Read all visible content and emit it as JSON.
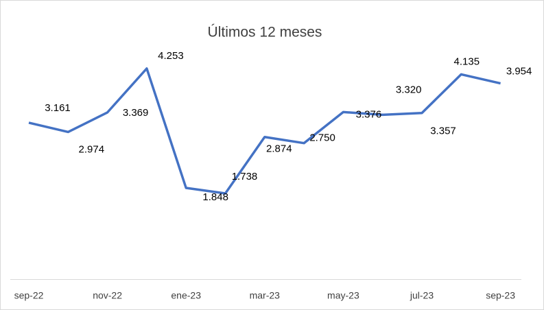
{
  "chart_data": {
    "type": "line",
    "title": "Últimos 12 meses",
    "categories": [
      "sep-22",
      null,
      "nov-22",
      null,
      "ene-23",
      null,
      "mar-23",
      null,
      "may-23",
      null,
      "jul-23",
      null,
      "sep-23"
    ],
    "series": [
      {
        "color": "#4472c4",
        "values": [
          3161,
          2974,
          3369,
          4253,
          1848,
          1738,
          2874,
          2750,
          3376,
          3320,
          3357,
          4135,
          3954
        ],
        "value_labels": [
          "3.161",
          "2.974",
          "3.369",
          "4.253",
          "1.848",
          "1.738",
          "2.874",
          "2.750",
          "3.376",
          "3.320",
          "3.357",
          "4.135",
          "3.954"
        ]
      }
    ],
    "ylim": [
      0,
      4500
    ]
  }
}
